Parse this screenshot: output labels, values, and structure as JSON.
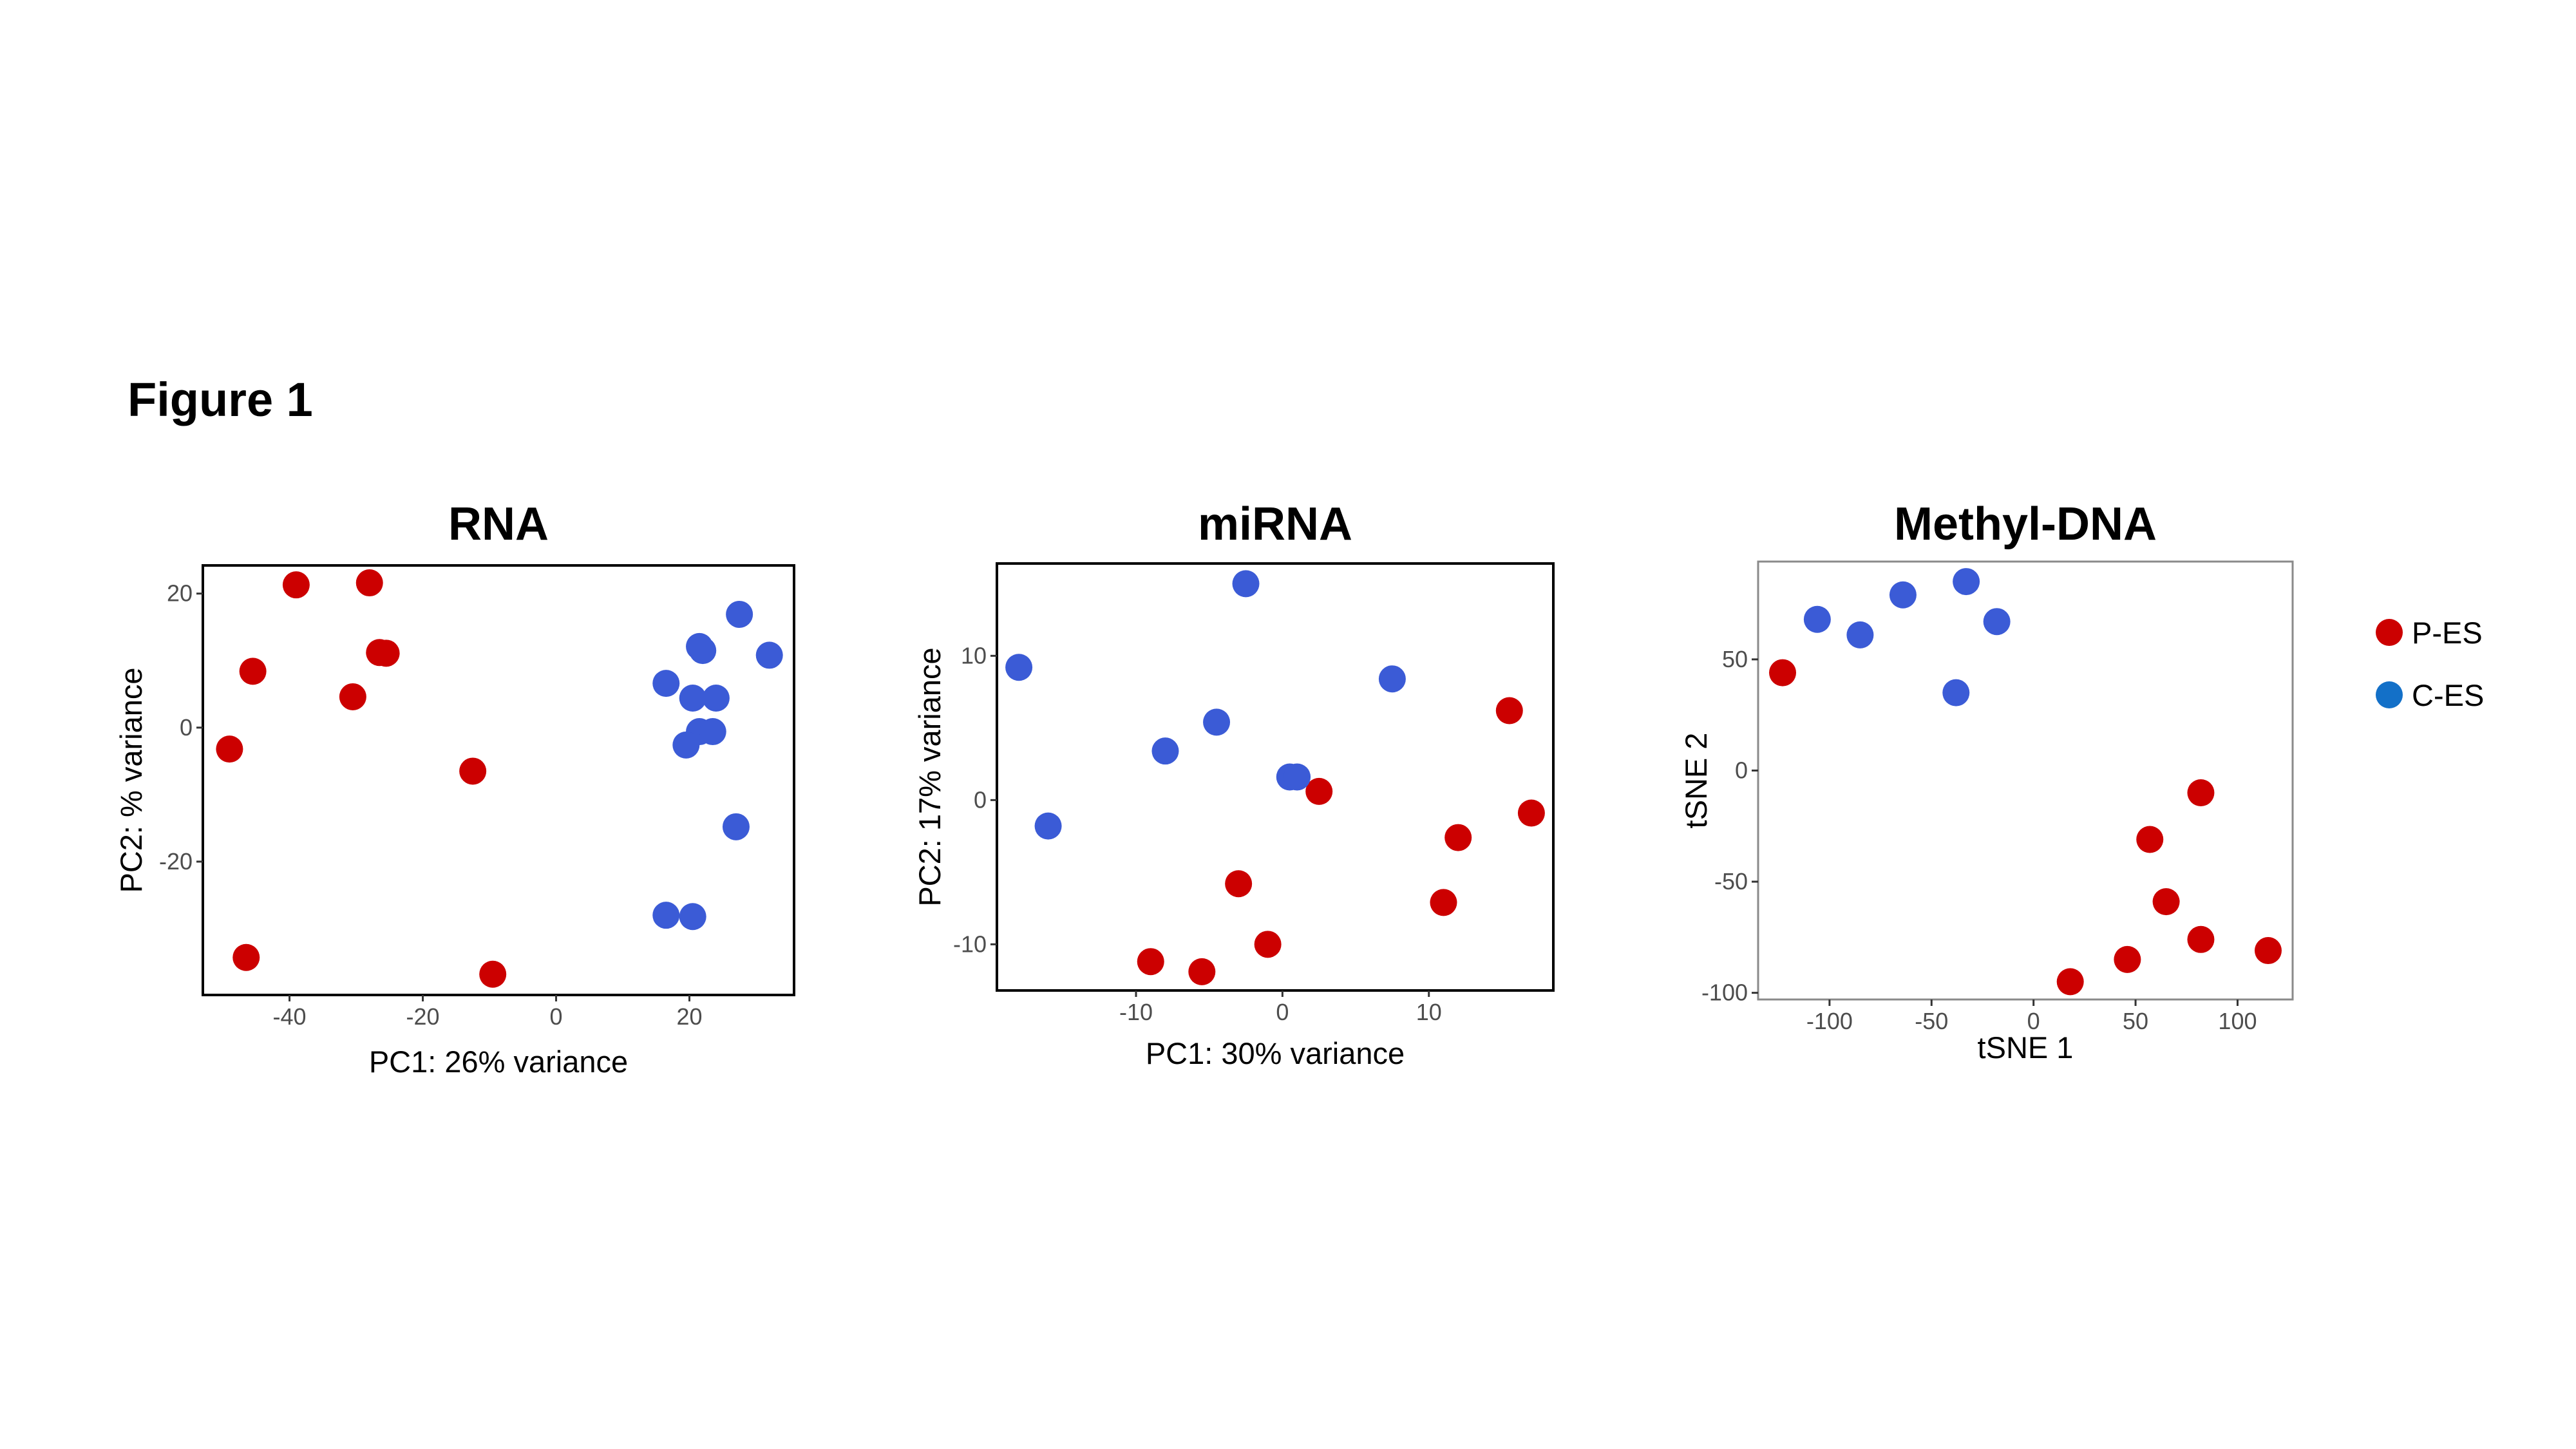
{
  "figure_title": "Figure 1",
  "colors": {
    "P-ES": "#cc0000",
    "C-ES": "#3b5bd6",
    "legend_C-ES": "#1370c8"
  },
  "legend": [
    {
      "label": "P-ES",
      "color": "#cc0000"
    },
    {
      "label": "C-ES",
      "color": "#1370c8"
    }
  ],
  "chart_data": [
    {
      "type": "scatter",
      "title": "RNA",
      "xlabel": "PC1: 26% variance",
      "ylabel": "PC2: % variance",
      "xlim": [
        -53,
        35.7
      ],
      "ylim": [
        -39.9,
        24.2
      ],
      "xticks": [
        -40,
        -20,
        0,
        20
      ],
      "yticks": [
        -20,
        0,
        20
      ],
      "frame": "bold",
      "series": [
        {
          "name": "P-ES",
          "color": "#cc0000",
          "points": [
            [
              -39,
              21.3
            ],
            [
              -28,
              21.6
            ],
            [
              -26.5,
              11.2
            ],
            [
              -25.5,
              11.1
            ],
            [
              -45.5,
              8.4
            ],
            [
              -30.5,
              4.6
            ],
            [
              -49,
              -3.2
            ],
            [
              -12.5,
              -6.5
            ],
            [
              -46.5,
              -34.3
            ],
            [
              -9.5,
              -36.8
            ]
          ]
        },
        {
          "name": "C-ES",
          "color": "#3b5bd6",
          "points": [
            [
              27.5,
              16.9
            ],
            [
              21.5,
              12.1
            ],
            [
              22,
              11.5
            ],
            [
              32,
              10.8
            ],
            [
              16.5,
              6.6
            ],
            [
              20.5,
              4.4
            ],
            [
              24,
              4.4
            ],
            [
              21.5,
              -0.6
            ],
            [
              23.5,
              -0.6
            ],
            [
              19.5,
              -2.6
            ],
            [
              27,
              -14.8
            ],
            [
              16.5,
              -28
            ],
            [
              20.5,
              -28.2
            ]
          ]
        }
      ]
    },
    {
      "type": "scatter",
      "title": "miRNA",
      "xlabel": "PC1: 30% variance",
      "ylabel": "PC2: 17% variance",
      "xlim": [
        -19.5,
        18.5
      ],
      "ylim": [
        -13.2,
        16.4
      ],
      "xticks": [
        -10,
        0,
        10
      ],
      "yticks": [
        -10,
        0,
        10
      ],
      "frame": "bold",
      "series": [
        {
          "name": "P-ES",
          "color": "#cc0000",
          "points": [
            [
              15.5,
              6.2
            ],
            [
              2.5,
              0.6
            ],
            [
              17,
              -0.9
            ],
            [
              12,
              -2.6
            ],
            [
              -3,
              -5.8
            ],
            [
              11,
              -7.1
            ],
            [
              -1,
              -10
            ],
            [
              -9,
              -11.2
            ],
            [
              -5.5,
              -11.9
            ]
          ]
        },
        {
          "name": "C-ES",
          "color": "#3b5bd6",
          "points": [
            [
              -2.5,
              15
            ],
            [
              -18,
              9.2
            ],
            [
              7.5,
              8.4
            ],
            [
              -4.5,
              5.4
            ],
            [
              -8,
              3.4
            ],
            [
              0.5,
              1.6
            ],
            [
              1,
              1.6
            ],
            [
              -16,
              -1.8
            ]
          ]
        }
      ]
    },
    {
      "type": "scatter",
      "title": "Methyl-DNA",
      "xlabel": "tSNE 1",
      "ylabel": "tSNE 2",
      "xlim": [
        -135,
        127
      ],
      "ylim": [
        -103,
        94
      ],
      "xticks": [
        -100,
        -50,
        0,
        50,
        100
      ],
      "yticks": [
        -100,
        -50,
        0,
        50
      ],
      "frame": "light",
      "series": [
        {
          "name": "P-ES",
          "color": "#cc0000",
          "points": [
            [
              -123,
              44
            ],
            [
              82,
              -10
            ],
            [
              57,
              -31
            ],
            [
              65,
              -59
            ],
            [
              82,
              -76
            ],
            [
              46,
              -85
            ],
            [
              115,
              -81
            ],
            [
              18,
              -95
            ]
          ]
        },
        {
          "name": "C-ES",
          "color": "#3b5bd6",
          "points": [
            [
              -33,
              85
            ],
            [
              -64,
              79
            ],
            [
              -106,
              68
            ],
            [
              -18,
              67
            ],
            [
              -85,
              61
            ],
            [
              -38,
              35
            ]
          ]
        }
      ]
    }
  ]
}
